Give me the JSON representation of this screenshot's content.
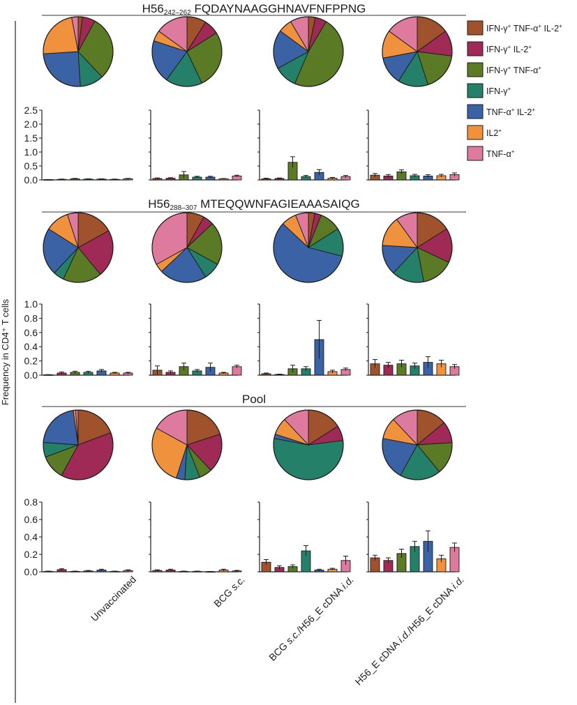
{
  "colors": [
    "#a0522d",
    "#9e2a55",
    "#5a7a25",
    "#25806a",
    "#3a62a5",
    "#f0913e",
    "#dd7a9e"
  ],
  "legend": [
    [
      {
        "t": "IFN-γ"
      },
      {
        "t": "+",
        "s": 1
      },
      {
        "t": " TNF-α"
      },
      {
        "t": "+",
        "s": 1
      },
      {
        "t": " IL-2"
      },
      {
        "t": "+",
        "s": 1
      }
    ],
    [
      {
        "t": "IFN-γ"
      },
      {
        "t": "+",
        "s": 1
      },
      {
        "t": " IL-2"
      },
      {
        "t": "+",
        "s": 1
      }
    ],
    [
      {
        "t": "IFN-γ"
      },
      {
        "t": "+",
        "s": 1
      },
      {
        "t": " TNF-α"
      },
      {
        "t": "+",
        "s": 1
      }
    ],
    [
      {
        "t": "IFN-γ"
      },
      {
        "t": "+",
        "s": 1
      }
    ],
    [
      {
        "t": "TNF-α"
      },
      {
        "t": "+",
        "s": 1
      },
      {
        "t": " IL-2"
      },
      {
        "t": "+",
        "s": 1
      }
    ],
    [
      {
        "t": "IL2"
      },
      {
        "t": "+",
        "s": 1
      }
    ],
    [
      {
        "t": "TNF-α"
      },
      {
        "t": "+",
        "s": 1
      }
    ]
  ],
  "y_axis_label": "Frequency in CD4⁺ T cells",
  "groups": [
    "Unvaccinated",
    "BCG s.c.",
    "BCG s.c./H56_E cDNA i.d.",
    "H56_E cDNA i.d./H56_E cDNA i.d."
  ],
  "chart_data": [
    {
      "type": "bar",
      "title_main": "H56",
      "title_sub": "242–262",
      "title_seq": " FQDAYNAAGGHNAVFNFPPNG",
      "ylim": [
        0,
        2.5
      ],
      "yticks": [
        "0.0",
        "0.5",
        "1.0",
        "1.5",
        "2.0",
        "2.5"
      ],
      "ytick_values": [
        0,
        0.5,
        1.0,
        1.5,
        2.0,
        2.5
      ],
      "series": [
        {
          "group": "Unvaccinated",
          "values": [
            0.01,
            0.02,
            0.04,
            0.03,
            0.03,
            0.02,
            0.04
          ],
          "errors": [
            0.005,
            0.01,
            0.015,
            0.01,
            0.01,
            0.01,
            0.015
          ]
        },
        {
          "group": "BCG s.c.",
          "values": [
            0.05,
            0.06,
            0.18,
            0.1,
            0.1,
            0.04,
            0.14
          ],
          "errors": [
            0.02,
            0.02,
            0.12,
            0.03,
            0.03,
            0.01,
            0.03
          ]
        },
        {
          "group": "BCG s.c./H56_E cDNA i.d.",
          "values": [
            0.04,
            0.05,
            0.63,
            0.12,
            0.27,
            0.06,
            0.12
          ],
          "errors": [
            0.02,
            0.02,
            0.2,
            0.04,
            0.1,
            0.03,
            0.04
          ]
        },
        {
          "group": "H56_E cDNA i.d./H56_E cDNA i.d.",
          "values": [
            0.17,
            0.14,
            0.29,
            0.15,
            0.14,
            0.15,
            0.19
          ],
          "errors": [
            0.06,
            0.05,
            0.07,
            0.05,
            0.05,
            0.05,
            0.06
          ]
        }
      ],
      "pies": [
        [
          2,
          6,
          30,
          11,
          25,
          23,
          3
        ],
        [
          9,
          7,
          27,
          17,
          20,
          5,
          15
        ],
        [
          3,
          5,
          45,
          10,
          17,
          6,
          8
        ],
        [
          15,
          12,
          18,
          14,
          13,
          13,
          15
        ]
      ]
    },
    {
      "type": "bar",
      "title_main": "H56",
      "title_sub": "288–307",
      "title_seq": " MTEQQWNFAGIEAAASAIQG",
      "ylim": [
        0,
        1.0
      ],
      "yticks": [
        "0.0",
        "0.2",
        "0.4",
        "0.6",
        "0.8",
        "1.0"
      ],
      "ytick_values": [
        0,
        0.2,
        0.4,
        0.6,
        0.8,
        1.0
      ],
      "series": [
        {
          "group": "Unvaccinated",
          "values": [
            0.005,
            0.03,
            0.04,
            0.04,
            0.06,
            0.03,
            0.03
          ],
          "errors": [
            0.003,
            0.015,
            0.015,
            0.015,
            0.02,
            0.01,
            0.01
          ]
        },
        {
          "group": "BCG s.c.",
          "values": [
            0.07,
            0.04,
            0.12,
            0.06,
            0.11,
            0.03,
            0.12
          ],
          "errors": [
            0.06,
            0.02,
            0.05,
            0.02,
            0.06,
            0.01,
            0.02
          ]
        },
        {
          "group": "BCG s.c./H56_E cDNA i.d.",
          "values": [
            0.02,
            0.01,
            0.09,
            0.09,
            0.5,
            0.05,
            0.08
          ],
          "errors": [
            0.01,
            0.005,
            0.05,
            0.03,
            0.27,
            0.02,
            0.02
          ]
        },
        {
          "group": "H56_E cDNA i.d./H56_E cDNA i.d.",
          "values": [
            0.16,
            0.14,
            0.16,
            0.13,
            0.18,
            0.16,
            0.12
          ],
          "errors": [
            0.06,
            0.04,
            0.05,
            0.04,
            0.08,
            0.05,
            0.03
          ]
        }
      ],
      "pies": [
        [
          17,
          22,
          18,
          5,
          22,
          11,
          5
        ],
        [
          8,
          5,
          20,
          8,
          22,
          4,
          33
        ],
        [
          3,
          3,
          10,
          13,
          58,
          7,
          6
        ],
        [
          16,
          16,
          15,
          15,
          14,
          14,
          10
        ]
      ]
    },
    {
      "type": "bar",
      "title_main": "Pool",
      "title_sub": "",
      "title_seq": "",
      "ylim": [
        0,
        0.8
      ],
      "yticks": [
        "0.0",
        "0.2",
        "0.4",
        "0.6",
        "0.8"
      ],
      "ytick_values": [
        0,
        0.2,
        0.4,
        0.6,
        0.8
      ],
      "series": [
        {
          "group": "Unvaccinated",
          "values": [
            0.005,
            0.025,
            0.005,
            0.01,
            0.02,
            0.005,
            0.015
          ],
          "errors": [
            0.003,
            0.01,
            0.003,
            0.005,
            0.01,
            0.003,
            0.008
          ]
        },
        {
          "group": "BCG s.c.",
          "values": [
            0.015,
            0.02,
            0.005,
            0.005,
            0.002,
            0.02,
            0.01
          ],
          "errors": [
            0.008,
            0.01,
            0.003,
            0.003,
            0.002,
            0.01,
            0.006
          ]
        },
        {
          "group": "BCG s.c./H56_E cDNA i.d.",
          "values": [
            0.11,
            0.05,
            0.06,
            0.24,
            0.02,
            0.03,
            0.13
          ],
          "errors": [
            0.03,
            0.02,
            0.02,
            0.06,
            0.01,
            0.01,
            0.05
          ]
        },
        {
          "group": "H56_E cDNA i.d./H56_E cDNA i.d.",
          "values": [
            0.16,
            0.13,
            0.21,
            0.29,
            0.35,
            0.15,
            0.28
          ],
          "errors": [
            0.03,
            0.03,
            0.05,
            0.06,
            0.12,
            0.04,
            0.05
          ]
        }
      ],
      "pies": [
        [
          17,
          34,
          10,
          6,
          19,
          1,
          1
        ],
        [
          20,
          18,
          6,
          7,
          4,
          28,
          17
        ],
        [
          16,
          7,
          0,
          55,
          2,
          8,
          12
        ],
        [
          14,
          10,
          15,
          19,
          20,
          10,
          12
        ]
      ]
    }
  ]
}
